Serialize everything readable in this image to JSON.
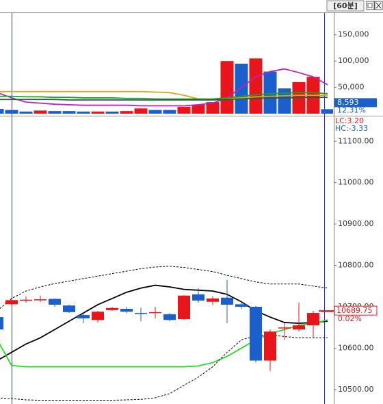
{
  "header": {
    "label": "[60분]"
  },
  "chart_data": [
    {
      "type": "bar",
      "categories": [
        null,
        null,
        null,
        null,
        null,
        null,
        null,
        null,
        null,
        null,
        null,
        null,
        null,
        null,
        null,
        null,
        null,
        null,
        null,
        null,
        null,
        null,
        null,
        null
      ],
      "values": [
        9000,
        7000,
        4000,
        6000,
        5000,
        5000,
        4000,
        4000,
        4000,
        5000,
        10000,
        7000,
        7000,
        13000,
        17000,
        22000,
        100000,
        95000,
        105000,
        80000,
        48000,
        60000,
        70000,
        8593
      ],
      "colors": [
        "#1a5fcc",
        "#1a5fcc",
        "#1a5fcc",
        "#e8161b",
        "#1a5fcc",
        "#1a5fcc",
        "#1a5fcc",
        "#e8161b",
        "#1a5fcc",
        "#e8161b",
        "#e8161b",
        "#1a5fcc",
        "#1a5fcc",
        "#e8161b",
        "#e8161b",
        "#e8161b",
        "#e8161b",
        "#1a5fcc",
        "#e8161b",
        "#1a5fcc",
        "#1a5fcc",
        "#e8161b",
        "#e8161b",
        "#1a5fcc"
      ],
      "lines": [
        {
          "color": "#c020c0",
          "values": [
            40000,
            30000,
            22000,
            20000,
            18000,
            17000,
            16000,
            16000,
            16000,
            16000,
            15000,
            15000,
            15000,
            15000,
            17000,
            20000,
            30000,
            50000,
            70000,
            80000,
            85000,
            78000,
            70000,
            55000
          ]
        },
        {
          "color": "#e0a020",
          "values": [
            42000,
            42000,
            42000,
            42000,
            42000,
            42000,
            42000,
            42000,
            42000,
            42000,
            42000,
            41000,
            40000,
            35000,
            28000,
            27000,
            28000,
            30000,
            32000,
            33000,
            34000,
            35000,
            35000,
            35000
          ]
        },
        {
          "color": "#20a020",
          "values": [
            33000,
            33000,
            32000,
            32000,
            31000,
            31000,
            30000,
            30000,
            30000,
            29000,
            29000,
            28000,
            28000,
            28000,
            28000,
            28000,
            30000,
            33000,
            36000,
            38000,
            39000,
            40000,
            40000,
            38000
          ]
        },
        {
          "color": "#206040",
          "values": [
            27000,
            27000,
            27000,
            27000,
            27000,
            26000,
            26000,
            26000,
            26000,
            26000,
            26000,
            26000,
            26000,
            26000,
            26000,
            26000,
            27000,
            28000,
            29000,
            30000,
            30000,
            31000,
            31000,
            31000
          ]
        }
      ],
      "ylim": [
        0,
        190000
      ],
      "yticks": [
        {
          "value": 50000,
          "label": "50,000"
        },
        {
          "value": 100000,
          "label": "100,000"
        },
        {
          "value": 150000,
          "label": "150,000"
        }
      ],
      "annotations": [
        "8,593",
        "12.31%"
      ]
    },
    {
      "type": "candlestick",
      "categories": [
        null,
        null,
        null,
        null,
        null,
        null,
        null,
        null,
        null,
        null,
        null,
        null,
        null,
        null,
        null,
        null,
        null,
        null,
        null,
        null,
        null,
        null,
        null,
        null
      ],
      "open": [
        10675,
        10706,
        10715,
        10716,
        10719,
        10703,
        10680,
        10668,
        10692,
        10695,
        10685,
        10686,
        10682,
        10670,
        10730,
        10712,
        10722,
        10706,
        10700,
        10570,
        10648,
        10645,
        10655,
        10689
      ],
      "high": [
        10680,
        10717,
        10725,
        10727,
        10720,
        10705,
        10685,
        10690,
        10700,
        10700,
        10698,
        10700,
        10685,
        10728,
        10745,
        10725,
        10765,
        10712,
        10702,
        10645,
        10660,
        10710,
        10690,
        10690
      ],
      "low": [
        10640,
        10705,
        10710,
        10712,
        10700,
        10685,
        10660,
        10662,
        10690,
        10685,
        10665,
        10672,
        10665,
        10668,
        10710,
        10705,
        10660,
        10695,
        10565,
        10545,
        10620,
        10640,
        10625,
        10689
      ],
      "close": [
        10645,
        10716,
        10717,
        10718,
        10705,
        10687,
        10672,
        10688,
        10697,
        10688,
        10684,
        10687,
        10668,
        10727,
        10715,
        10720,
        10705,
        10700,
        10570,
        10640,
        10650,
        10655,
        10685,
        10689.75
      ],
      "lines": [
        {
          "color": "#000000",
          "dashed": false,
          "values": [
            10570,
            10590,
            10610,
            10625,
            10645,
            10665,
            10685,
            10705,
            10720,
            10735,
            10745,
            10752,
            10748,
            10742,
            10740,
            10738,
            10730,
            10712,
            10690,
            10675,
            10662,
            10660,
            10662,
            10665
          ]
        },
        {
          "color": "#22dd22",
          "dashed": false,
          "values": [
            10620,
            10558,
            10555,
            10555,
            10555,
            10555,
            10555,
            10555,
            10555,
            10555,
            10555,
            10555,
            10555,
            10555,
            10557,
            10565,
            10580,
            10600,
            10620,
            10635,
            10645,
            10655,
            10660,
            10668
          ]
        },
        {
          "color": "#000000",
          "dashed": true,
          "values": [
            10690,
            10720,
            10738,
            10748,
            10756,
            10762,
            10768,
            10774,
            10780,
            10786,
            10792,
            10796,
            10798,
            10795,
            10790,
            10785,
            10776,
            10768,
            10760,
            10755,
            10755,
            10755,
            10750,
            10745
          ]
        },
        {
          "color": "#000000",
          "dashed": true,
          "values": [
            10480,
            10478,
            10475,
            10474,
            10474,
            10474,
            10474,
            10474,
            10474,
            10475,
            10476,
            10480,
            10490,
            10510,
            10530,
            10555,
            10590,
            10620,
            10630,
            10632,
            10628,
            10625,
            10625,
            10625
          ]
        }
      ],
      "ylim": [
        10465,
        11160
      ],
      "yticks": [
        {
          "value": 10500,
          "label": "10500.00"
        },
        {
          "value": 10600,
          "label": "10600.00"
        },
        {
          "value": 10700,
          "label": "10700.00"
        },
        {
          "value": 10800,
          "label": "10800.00"
        },
        {
          "value": 10900,
          "label": "10900.00"
        },
        {
          "value": 11000,
          "label": "11000.00"
        },
        {
          "value": 11100,
          "label": "11100.00"
        }
      ],
      "annotations": [
        "LC:3.20",
        "HC:-3.33",
        "10689.75",
        "0.02%"
      ]
    }
  ]
}
